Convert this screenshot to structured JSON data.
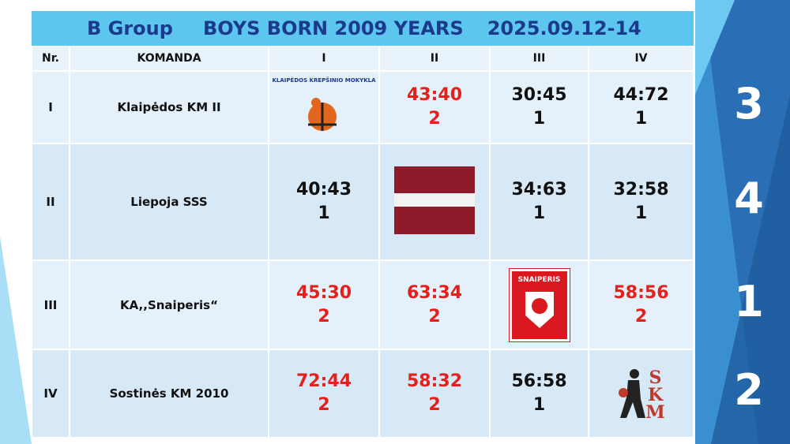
{
  "header": {
    "group": "B Group",
    "title": "BOYS BORN 2009 YEARS",
    "dates": "2025.09.12-14"
  },
  "table": {
    "columns": [
      "Nr.",
      "KOMANDA",
      "I",
      "II",
      "III",
      "IV"
    ],
    "rows": [
      {
        "nr": "I",
        "team": "Klaipėdos KM II",
        "logo": "KLAIPĖDOS KREPŠINIO MOKYKLA",
        "place": 3,
        "results": [
          null,
          {
            "score": "43:40",
            "points": 2,
            "color": "#e3201b"
          },
          {
            "score": "30:45",
            "points": 1,
            "color": "#111111"
          },
          {
            "score": "44:72",
            "points": 1,
            "color": "#111111"
          }
        ]
      },
      {
        "nr": "II",
        "team": "Liepoja SSS",
        "place": 4,
        "results": [
          {
            "score": "40:43",
            "points": 1,
            "color": "#111111"
          },
          null,
          {
            "score": "34:63",
            "points": 1,
            "color": "#111111"
          },
          {
            "score": "32:58",
            "points": 1,
            "color": "#111111"
          }
        ]
      },
      {
        "nr": "III",
        "team": "KA,,Snaiperis“",
        "logo": "SNAIPERIS",
        "place": 1,
        "results": [
          {
            "score": "45:30",
            "points": 2,
            "color": "#e3201b"
          },
          {
            "score": "63:34",
            "points": 2,
            "color": "#e3201b"
          },
          null,
          {
            "score": "58:56",
            "points": 2,
            "color": "#e3201b"
          }
        ]
      },
      {
        "nr": "IV",
        "team": "Sostinės KM 2010",
        "logo": "SKM",
        "place": 2,
        "results": [
          {
            "score": "72:44",
            "points": 2,
            "color": "#e3201b"
          },
          {
            "score": "58:32",
            "points": 2,
            "color": "#e3201b"
          },
          {
            "score": "56:58",
            "points": 1,
            "color": "#111111"
          },
          null
        ]
      }
    ]
  }
}
